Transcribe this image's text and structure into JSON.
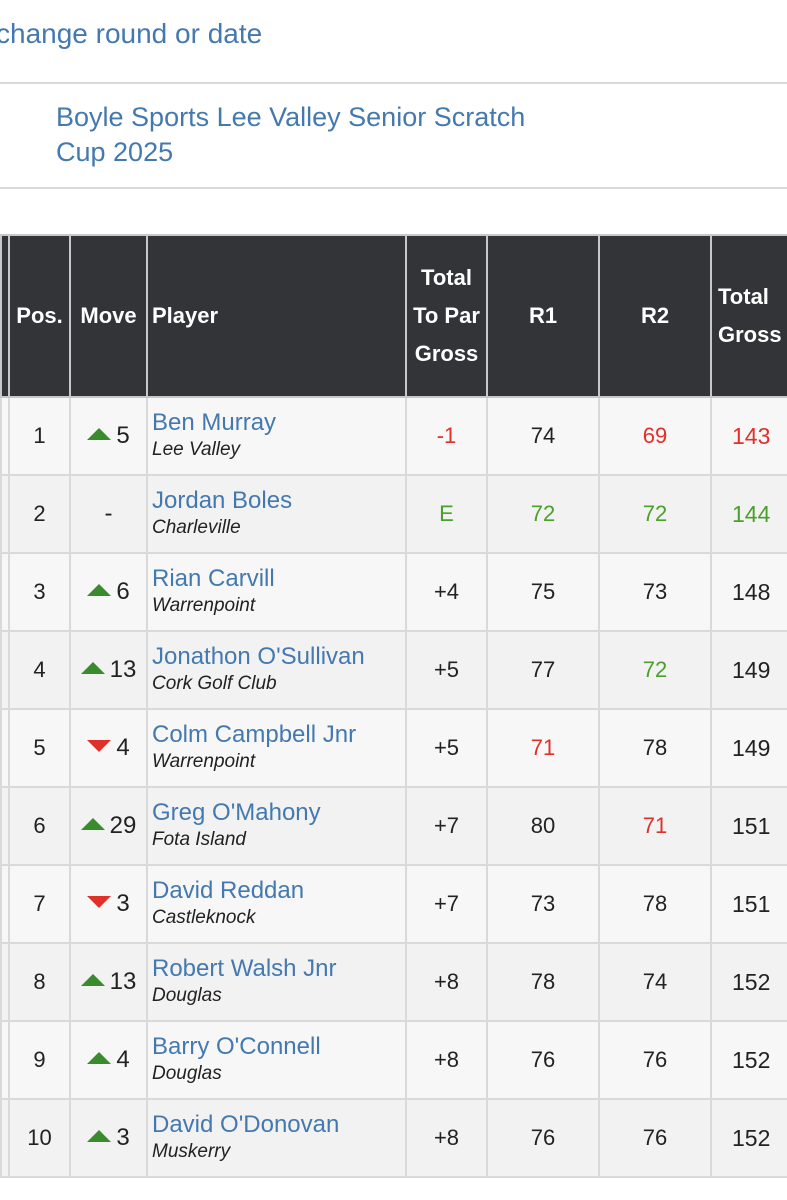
{
  "nav": {
    "change_label": "change round or date"
  },
  "event": {
    "title": "Boyle Sports Lee Valley Senior Scratch Cup 2025"
  },
  "table": {
    "headers": {
      "pos": "Pos.",
      "move": "Move",
      "player": "Player",
      "to_par": "Total To Par Gross",
      "r1": "R1",
      "r2": "R2",
      "gross": "Total Gross"
    },
    "colors": {
      "under": "#e0302a",
      "even": "#4aa02c",
      "normal": "#222222",
      "up": "#3a8a2e",
      "down": "#e0302a"
    },
    "rows": [
      {
        "pos": "1",
        "move_dir": "up",
        "move": "5",
        "name": "Ben Murray",
        "club": "Lee Valley",
        "to_par": "-1",
        "to_par_color": "red",
        "r1": "74",
        "r1_color": "black",
        "r2": "69",
        "r2_color": "red",
        "gross": "143",
        "gross_color": "red"
      },
      {
        "pos": "2",
        "move_dir": "none",
        "move": "-",
        "name": "Jordan Boles",
        "club": "Charleville",
        "to_par": "E",
        "to_par_color": "green",
        "r1": "72",
        "r1_color": "green",
        "r2": "72",
        "r2_color": "green",
        "gross": "144",
        "gross_color": "green"
      },
      {
        "pos": "3",
        "move_dir": "up",
        "move": "6",
        "name": "Rian Carvill",
        "club": "Warrenpoint",
        "to_par": "+4",
        "to_par_color": "black",
        "r1": "75",
        "r1_color": "black",
        "r2": "73",
        "r2_color": "black",
        "gross": "148",
        "gross_color": "black"
      },
      {
        "pos": "4",
        "move_dir": "up",
        "move": "13",
        "name": "Jonathon O'Sullivan",
        "club": "Cork Golf Club",
        "to_par": "+5",
        "to_par_color": "black",
        "r1": "77",
        "r1_color": "black",
        "r2": "72",
        "r2_color": "green",
        "gross": "149",
        "gross_color": "black"
      },
      {
        "pos": "5",
        "move_dir": "down",
        "move": "4",
        "name": "Colm Campbell Jnr",
        "club": "Warrenpoint",
        "to_par": "+5",
        "to_par_color": "black",
        "r1": "71",
        "r1_color": "red",
        "r2": "78",
        "r2_color": "black",
        "gross": "149",
        "gross_color": "black"
      },
      {
        "pos": "6",
        "move_dir": "up",
        "move": "29",
        "name": "Greg O'Mahony",
        "club": "Fota Island",
        "to_par": "+7",
        "to_par_color": "black",
        "r1": "80",
        "r1_color": "black",
        "r2": "71",
        "r2_color": "red",
        "gross": "151",
        "gross_color": "black"
      },
      {
        "pos": "7",
        "move_dir": "down",
        "move": "3",
        "name": "David Reddan",
        "club": "Castleknock",
        "to_par": "+7",
        "to_par_color": "black",
        "r1": "73",
        "r1_color": "black",
        "r2": "78",
        "r2_color": "black",
        "gross": "151",
        "gross_color": "black"
      },
      {
        "pos": "8",
        "move_dir": "up",
        "move": "13",
        "name": "Robert Walsh Jnr",
        "club": "Douglas",
        "to_par": "+8",
        "to_par_color": "black",
        "r1": "78",
        "r1_color": "black",
        "r2": "74",
        "r2_color": "black",
        "gross": "152",
        "gross_color": "black"
      },
      {
        "pos": "9",
        "move_dir": "up",
        "move": "4",
        "name": "Barry O'Connell",
        "club": "Douglas",
        "to_par": "+8",
        "to_par_color": "black",
        "r1": "76",
        "r1_color": "black",
        "r2": "76",
        "r2_color": "black",
        "gross": "152",
        "gross_color": "black"
      },
      {
        "pos": "10",
        "move_dir": "up",
        "move": "3",
        "name": "David O'Donovan",
        "club": "Muskerry",
        "to_par": "+8",
        "to_par_color": "black",
        "r1": "76",
        "r1_color": "black",
        "r2": "76",
        "r2_color": "black",
        "gross": "152",
        "gross_color": "black"
      }
    ]
  }
}
